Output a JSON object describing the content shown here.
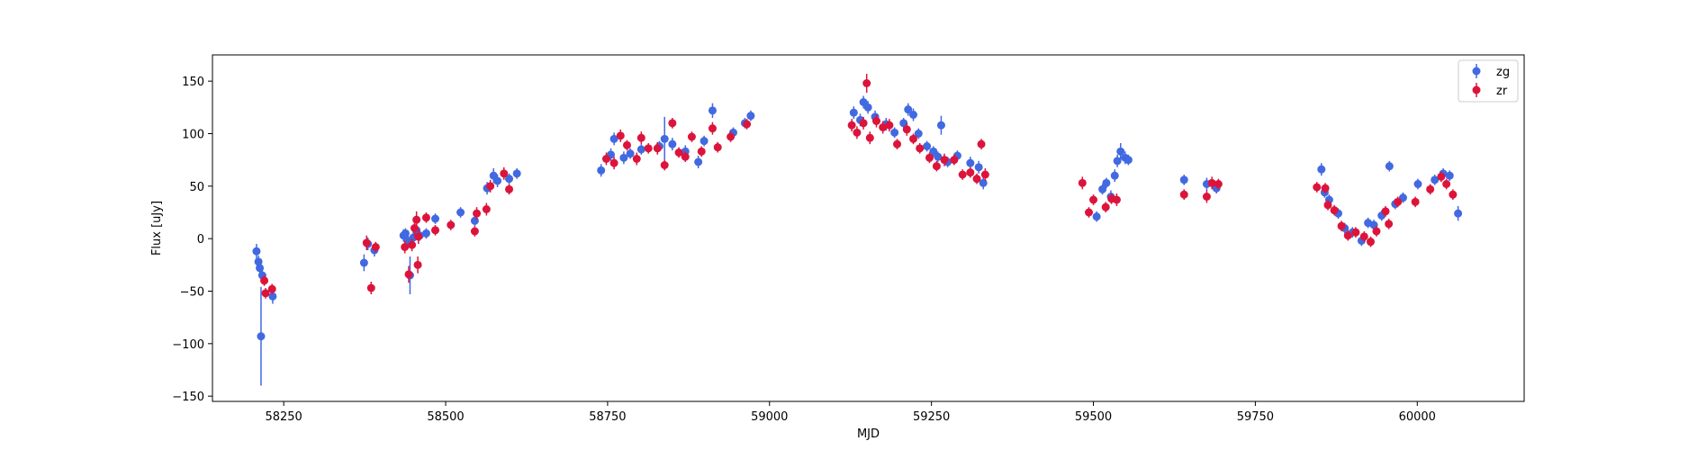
{
  "chart_data": {
    "type": "scatter",
    "xlabel": "MJD",
    "ylabel": "Flux [uJy]",
    "xlim": [
      58140,
      60165
    ],
    "ylim": [
      -155,
      175
    ],
    "xticks": [
      58250,
      58500,
      58750,
      59000,
      59250,
      59500,
      59750,
      60000
    ],
    "yticks": [
      -150,
      -100,
      -50,
      0,
      50,
      100,
      150
    ],
    "grid": false,
    "legend_position": "top-right",
    "series": [
      {
        "name": "zg",
        "color": "#4169e1",
        "points": [
          [
            58208,
            -12,
            7
          ],
          [
            58211,
            -22,
            6
          ],
          [
            58213,
            -28,
            8
          ],
          [
            58215,
            -93,
            47
          ],
          [
            58217,
            -35,
            6
          ],
          [
            58233,
            -55,
            7
          ],
          [
            58374,
            -23,
            8
          ],
          [
            58380,
            -5,
            6
          ],
          [
            58390,
            -11,
            6
          ],
          [
            58435,
            3,
            6
          ],
          [
            58438,
            5,
            5
          ],
          [
            58442,
            -2,
            5
          ],
          [
            58445,
            -35,
            18
          ],
          [
            58450,
            1,
            6
          ],
          [
            58455,
            8,
            6
          ],
          [
            58460,
            3,
            5
          ],
          [
            58470,
            5,
            5
          ],
          [
            58484,
            19,
            5
          ],
          [
            58523,
            25,
            5
          ],
          [
            58545,
            17,
            5
          ],
          [
            58564,
            48,
            6
          ],
          [
            58574,
            60,
            7
          ],
          [
            58580,
            55,
            6
          ],
          [
            58598,
            57,
            5
          ],
          [
            58610,
            62,
            5
          ],
          [
            58740,
            65,
            6
          ],
          [
            58755,
            80,
            6
          ],
          [
            58760,
            95,
            6
          ],
          [
            58775,
            77,
            6
          ],
          [
            58785,
            81,
            5
          ],
          [
            58802,
            85,
            5
          ],
          [
            58830,
            88,
            5
          ],
          [
            58838,
            95,
            21
          ],
          [
            58850,
            90,
            6
          ],
          [
            58870,
            83,
            6
          ],
          [
            58890,
            73,
            6
          ],
          [
            58899,
            93,
            5
          ],
          [
            58912,
            122,
            7
          ],
          [
            58944,
            101,
            5
          ],
          [
            58962,
            110,
            5
          ],
          [
            58971,
            117,
            5
          ],
          [
            59130,
            120,
            6
          ],
          [
            59140,
            113,
            6
          ],
          [
            59145,
            130,
            6
          ],
          [
            59152,
            125,
            6
          ],
          [
            59163,
            116,
            6
          ],
          [
            59180,
            109,
            6
          ],
          [
            59193,
            101,
            5
          ],
          [
            59207,
            110,
            5
          ],
          [
            59214,
            123,
            6
          ],
          [
            59222,
            118,
            6
          ],
          [
            59230,
            100,
            5
          ],
          [
            59243,
            88,
            5
          ],
          [
            59253,
            83,
            5
          ],
          [
            59260,
            78,
            5
          ],
          [
            59265,
            108,
            9
          ],
          [
            59275,
            73,
            5
          ],
          [
            59290,
            79,
            5
          ],
          [
            59310,
            72,
            6
          ],
          [
            59323,
            68,
            6
          ],
          [
            59330,
            53,
            6
          ],
          [
            59505,
            21,
            5
          ],
          [
            59514,
            47,
            5
          ],
          [
            59520,
            53,
            5
          ],
          [
            59527,
            40,
            6
          ],
          [
            59533,
            60,
            6
          ],
          [
            59537,
            74,
            6
          ],
          [
            59542,
            83,
            8
          ],
          [
            59549,
            77,
            6
          ],
          [
            59554,
            75,
            5
          ],
          [
            59640,
            56,
            5
          ],
          [
            59675,
            52,
            6
          ],
          [
            59690,
            48,
            5
          ],
          [
            59852,
            66,
            6
          ],
          [
            59857,
            44,
            5
          ],
          [
            59864,
            37,
            5
          ],
          [
            59878,
            24,
            5
          ],
          [
            59888,
            10,
            5
          ],
          [
            59900,
            6,
            5
          ],
          [
            59914,
            -2,
            5
          ],
          [
            59924,
            15,
            5
          ],
          [
            59933,
            13,
            5
          ],
          [
            59945,
            22,
            5
          ],
          [
            59957,
            69,
            5
          ],
          [
            59966,
            33,
            5
          ],
          [
            59978,
            39,
            5
          ],
          [
            60001,
            52,
            5
          ],
          [
            60027,
            56,
            5
          ],
          [
            60040,
            62,
            5
          ],
          [
            60050,
            60,
            5
          ],
          [
            60063,
            24,
            7
          ]
        ]
      },
      {
        "name": "zr",
        "color": "#dc143c",
        "points": [
          [
            58220,
            -40,
            5
          ],
          [
            58222,
            -52,
            5
          ],
          [
            58232,
            -48,
            5
          ],
          [
            58378,
            -4,
            7
          ],
          [
            58385,
            -47,
            6
          ],
          [
            58392,
            -8,
            5
          ],
          [
            58437,
            -8,
            6
          ],
          [
            58443,
            -34,
            8
          ],
          [
            58448,
            -6,
            6
          ],
          [
            58452,
            10,
            8
          ],
          [
            58455,
            18,
            8
          ],
          [
            58457,
            -25,
            8
          ],
          [
            58458,
            2,
            7
          ],
          [
            58470,
            20,
            5
          ],
          [
            58484,
            8,
            5
          ],
          [
            58508,
            13,
            5
          ],
          [
            58545,
            7,
            5
          ],
          [
            58548,
            24,
            6
          ],
          [
            58563,
            28,
            6
          ],
          [
            58569,
            50,
            6
          ],
          [
            58590,
            62,
            6
          ],
          [
            58598,
            47,
            5
          ],
          [
            58748,
            76,
            6
          ],
          [
            58760,
            72,
            6
          ],
          [
            58770,
            98,
            6
          ],
          [
            58780,
            89,
            5
          ],
          [
            58795,
            76,
            6
          ],
          [
            58802,
            96,
            6
          ],
          [
            58813,
            86,
            5
          ],
          [
            58827,
            86,
            6
          ],
          [
            58838,
            70,
            5
          ],
          [
            58850,
            110,
            5
          ],
          [
            58860,
            82,
            5
          ],
          [
            58870,
            78,
            5
          ],
          [
            58880,
            97,
            5
          ],
          [
            58895,
            83,
            5
          ],
          [
            58912,
            105,
            6
          ],
          [
            58920,
            87,
            5
          ],
          [
            58940,
            97,
            5
          ],
          [
            58965,
            109,
            5
          ],
          [
            59127,
            108,
            6
          ],
          [
            59135,
            101,
            6
          ],
          [
            59145,
            110,
            6
          ],
          [
            59150,
            148,
            9
          ],
          [
            59155,
            96,
            6
          ],
          [
            59165,
            112,
            6
          ],
          [
            59175,
            106,
            6
          ],
          [
            59185,
            108,
            6
          ],
          [
            59197,
            90,
            5
          ],
          [
            59212,
            104,
            6
          ],
          [
            59222,
            95,
            5
          ],
          [
            59232,
            86,
            5
          ],
          [
            59247,
            77,
            5
          ],
          [
            59258,
            69,
            5
          ],
          [
            59270,
            75,
            6
          ],
          [
            59285,
            75,
            5
          ],
          [
            59298,
            61,
            5
          ],
          [
            59310,
            63,
            5
          ],
          [
            59320,
            57,
            5
          ],
          [
            59327,
            90,
            5
          ],
          [
            59333,
            61,
            6
          ],
          [
            59483,
            53,
            6
          ],
          [
            59493,
            25,
            5
          ],
          [
            59500,
            37,
            5
          ],
          [
            59519,
            30,
            5
          ],
          [
            59528,
            38,
            5
          ],
          [
            59536,
            37,
            6
          ],
          [
            59640,
            42,
            5
          ],
          [
            59675,
            40,
            6
          ],
          [
            59683,
            53,
            6
          ],
          [
            59693,
            52,
            5
          ],
          [
            59845,
            49,
            5
          ],
          [
            59858,
            48,
            5
          ],
          [
            59862,
            32,
            5
          ],
          [
            59872,
            27,
            5
          ],
          [
            59883,
            12,
            5
          ],
          [
            59893,
            3,
            5
          ],
          [
            59905,
            6,
            5
          ],
          [
            59918,
            2,
            5
          ],
          [
            59928,
            -3,
            5
          ],
          [
            59937,
            7,
            5
          ],
          [
            59951,
            26,
            5
          ],
          [
            59956,
            14,
            5
          ],
          [
            59970,
            35,
            5
          ],
          [
            59997,
            35,
            5
          ],
          [
            60020,
            47,
            5
          ],
          [
            60037,
            59,
            5
          ],
          [
            60045,
            52,
            5
          ],
          [
            60055,
            42,
            5
          ]
        ]
      }
    ]
  }
}
